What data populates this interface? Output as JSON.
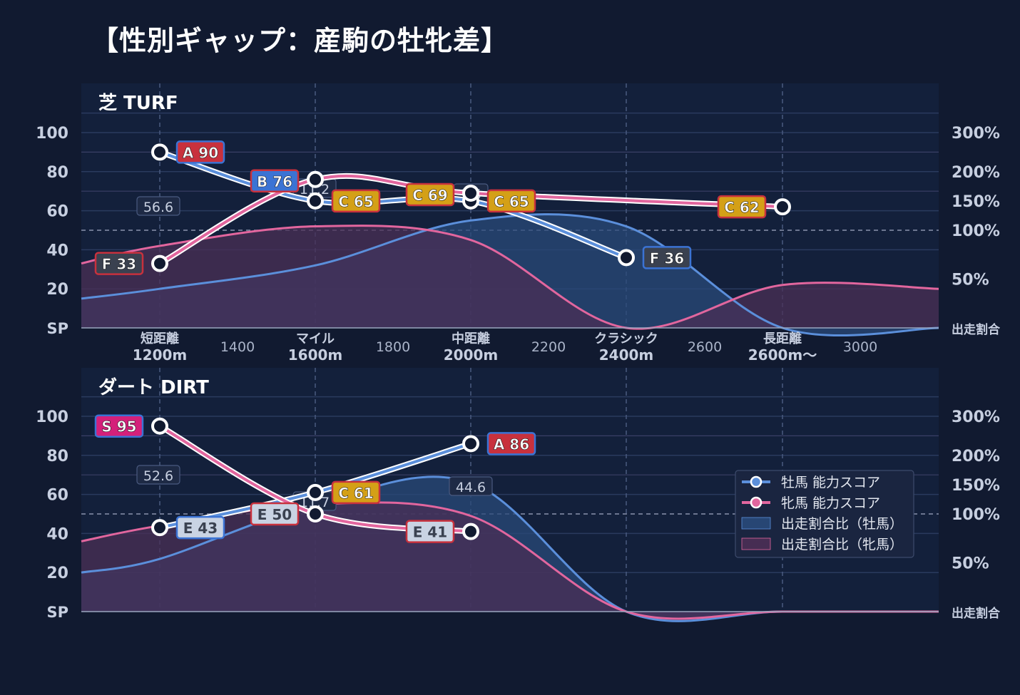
{
  "title": "【性別ギャップ：産駒の牡牝差】",
  "axes": {
    "left_ticks": [
      "100",
      "80",
      "60",
      "40",
      "20",
      "SP"
    ],
    "right_ticks": [
      "300%",
      "200%",
      "150%",
      "100%",
      "50%",
      "出走割合"
    ],
    "x_major": [
      {
        "line1": "短距離",
        "line2": "1200m"
      },
      {
        "line1": "マイル",
        "line2": "1600m"
      },
      {
        "line1": "中距離",
        "line2": "2000m"
      },
      {
        "line1": "クラシック",
        "line2": "2400m"
      },
      {
        "line1": "長距離",
        "line2": "2600m〜"
      }
    ],
    "x_minor": [
      "1400",
      "1800",
      "2200",
      "2600",
      "3000"
    ]
  },
  "legend": {
    "male_score": "牡馬 能力スコア",
    "female_score": "牝馬 能力スコア",
    "male_ratio": "出走割合比（牡馬）",
    "female_ratio": "出走割合比（牝馬）"
  },
  "colors": {
    "male": "#5b8fdb",
    "female": "#e2669e",
    "male_fill": "#294a7a",
    "female_fill": "#4b2f55",
    "background": "#111a30",
    "plot_bg": "#13203b"
  },
  "chart_data": [
    {
      "type": "line",
      "panel_label": "芝 TURF",
      "x": [
        "1200m",
        "1600m",
        "2000m",
        "2400m",
        "2600m〜"
      ],
      "ylim": [
        0,
        110
      ],
      "series": [
        {
          "name": "牡馬 能力スコア",
          "values": [
            90,
            65,
            65,
            36,
            null
          ],
          "labels": [
            "A 90",
            "C 65",
            "C 65",
            "F 36",
            ""
          ],
          "label_colors": [
            "#c8313d",
            "#d4a017",
            "#d4a017",
            "#3a4150",
            ""
          ]
        },
        {
          "name": "牝馬 能力スコア",
          "values": [
            33,
            76,
            69,
            null,
            62
          ],
          "labels": [
            "F 33",
            "B 76",
            "C 69",
            "",
            "C 62"
          ],
          "label_colors": [
            "#3a4150",
            "#3b73d4",
            "#d4a017",
            "",
            "#d4a017"
          ]
        }
      ],
      "male_ratio_curve": [
        15,
        20,
        32,
        55,
        52,
        0,
        0
      ],
      "female_ratio_curve": [
        33,
        42,
        52,
        45,
        0,
        22,
        20
      ],
      "ratio_annotations": [
        "56.6",
        "11.2",
        "1.5"
      ]
    },
    {
      "type": "line",
      "panel_label": "ダート DIRT",
      "x": [
        "1200m",
        "1600m",
        "2000m",
        "2400m",
        "2600m〜"
      ],
      "ylim": [
        0,
        110
      ],
      "series": [
        {
          "name": "牡馬 能力スコア",
          "values": [
            43,
            61,
            86,
            null,
            null
          ],
          "labels": [
            "E 43",
            "C 61",
            "A 86",
            "",
            ""
          ],
          "label_colors": [
            "#c9d3e3",
            "#d4a017",
            "#c8313d",
            "",
            ""
          ]
        },
        {
          "name": "牝馬 能力スコア",
          "values": [
            95,
            50,
            41,
            null,
            null
          ],
          "labels": [
            "S 95",
            "E 50",
            "E 41",
            "",
            ""
          ],
          "label_colors": [
            "#d4207a",
            "#c9d3e3",
            "#c9d3e3",
            "",
            ""
          ]
        }
      ],
      "male_ratio_curve": [
        20,
        27,
        55,
        66,
        0,
        0,
        0
      ],
      "female_ratio_curve": [
        36,
        44,
        55,
        49,
        0,
        0,
        0
      ],
      "ratio_annotations": [
        "52.6",
        "11.7",
        "44.6"
      ]
    }
  ]
}
